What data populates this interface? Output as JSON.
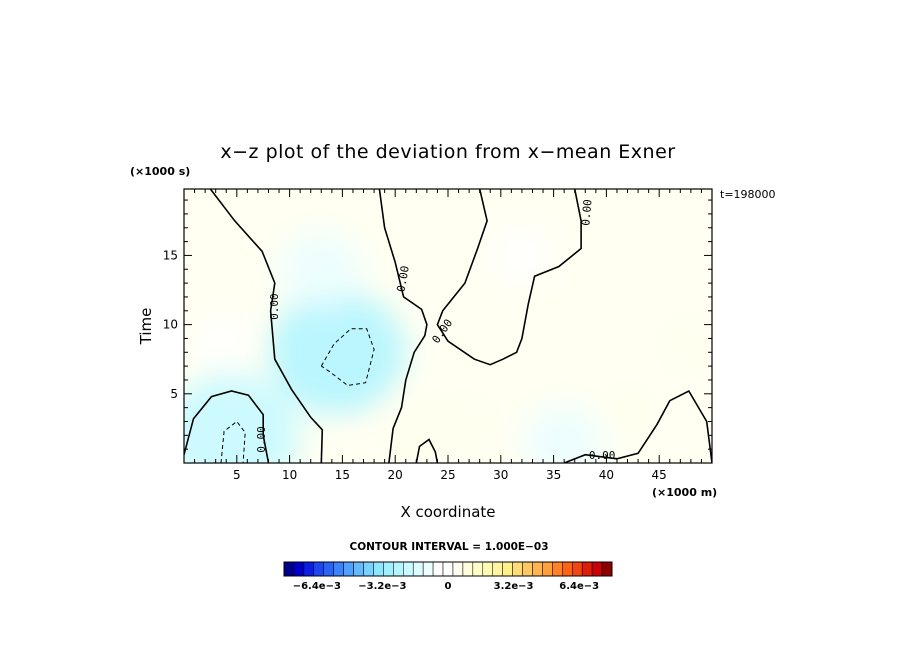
{
  "chart_data": {
    "type": "heatmap",
    "title": "x−z plot of the deviation from x−mean Exner",
    "xlabel": "X coordinate",
    "ylabel": "Time",
    "x_scale_label": "(×1000 m)",
    "y_scale_label": "(×1000 s)",
    "time_label": "t=198000",
    "xlim": [
      0,
      50
    ],
    "ylim": [
      0,
      19.8
    ],
    "x_ticks": [
      5,
      10,
      15,
      20,
      25,
      30,
      35,
      40,
      45
    ],
    "y_ticks": [
      5,
      10,
      15
    ],
    "contour_interval_text": "CONTOUR INTERVAL = 1.000E−03",
    "contour_labels": [
      "0.00",
      "0.00",
      "0.00",
      "0.00",
      "0.00",
      "0.00"
    ],
    "colorbar": {
      "range": [
        -0.008,
        0.008
      ],
      "tick_labels": [
        "−6.4e−3",
        "−3.2e−3",
        "0",
        "3.2e−3",
        "6.4e−3"
      ],
      "tick_values": [
        -0.0064,
        -0.0032,
        0,
        0.0032,
        0.0064
      ],
      "colors": [
        "#00008c",
        "#0000c8",
        "#0a1ee6",
        "#1e46f0",
        "#2864f5",
        "#3c82fa",
        "#50a0ff",
        "#64b9ff",
        "#78d2ff",
        "#8ce6ff",
        "#a0f0ff",
        "#b4f5ff",
        "#c8faff",
        "#dcfcff",
        "#ecfeff",
        "#ffffff",
        "#ffffff",
        "#fffff0",
        "#ffffdc",
        "#ffffc8",
        "#fffab4",
        "#fff5a0",
        "#fff08c",
        "#ffdc78",
        "#ffc864",
        "#ffb450",
        "#ffa03c",
        "#ff8228",
        "#fa6414",
        "#f04614",
        "#dc1e0a",
        "#c8000a",
        "#8c0000"
      ]
    },
    "anomalies": [
      {
        "x": 3.5,
        "y": 8.8,
        "value": 0.0002
      },
      {
        "x": 14.5,
        "y": 8.0,
        "value": -0.0022
      },
      {
        "x": 13.0,
        "y": 14.0,
        "value": -0.0008
      },
      {
        "x": 4.5,
        "y": 2.0,
        "value": -0.002
      },
      {
        "x": 27.0,
        "y": 2.5,
        "value": 0.0004
      },
      {
        "x": 36.0,
        "y": 1.5,
        "value": -0.0008
      },
      {
        "x": 32.0,
        "y": 15.0,
        "value": -0.0003
      },
      {
        "x": 42.0,
        "y": 3.5,
        "value": 0.0003
      },
      {
        "x": 48.0,
        "y": 8.5,
        "value": 0.0003
      },
      {
        "x": 22.0,
        "y": 2.5,
        "value": 0.0006
      }
    ],
    "contours": {
      "zero": [
        [
          [
            0.0,
            0.6
          ],
          [
            0.9,
            3.2
          ],
          [
            2.6,
            4.8
          ],
          [
            4.5,
            5.2
          ],
          [
            6.1,
            4.9
          ],
          [
            7.5,
            3.5
          ],
          [
            7.5,
            2.0
          ],
          [
            8.0,
            0.0
          ]
        ],
        [
          [
            2.5,
            19.8
          ],
          [
            4.8,
            17.5
          ],
          [
            7.4,
            15.3
          ],
          [
            8.6,
            13.0
          ],
          [
            8.2,
            11.0
          ],
          [
            8.6,
            7.5
          ],
          [
            10.2,
            5.3
          ],
          [
            12.0,
            3.3
          ],
          [
            13.1,
            2.4
          ],
          [
            13.0,
            0.0
          ]
        ],
        [
          [
            18.5,
            19.8
          ],
          [
            19.0,
            17.0
          ],
          [
            20.0,
            14.5
          ],
          [
            20.8,
            12.0
          ],
          [
            22.5,
            11.1
          ],
          [
            23.0,
            10.0
          ],
          [
            22.8,
            9.2
          ],
          [
            21.8,
            8.0
          ],
          [
            21.0,
            6.0
          ],
          [
            20.6,
            4.0
          ],
          [
            19.8,
            2.5
          ],
          [
            19.4,
            0.0
          ]
        ],
        [
          [
            28.0,
            19.8
          ],
          [
            28.7,
            17.5
          ],
          [
            27.8,
            15.5
          ],
          [
            26.6,
            13.0
          ],
          [
            24.5,
            11.0
          ],
          [
            24.0,
            10.0
          ],
          [
            25.0,
            8.8
          ],
          [
            27.5,
            7.5
          ],
          [
            29.0,
            7.1
          ],
          [
            30.2,
            7.5
          ],
          [
            31.5,
            8.0
          ],
          [
            32.0,
            9.0
          ],
          [
            32.6,
            11.5
          ],
          [
            33.2,
            13.5
          ],
          [
            35.5,
            14.2
          ],
          [
            37.6,
            15.5
          ],
          [
            37.6,
            17.5
          ],
          [
            37.0,
            19.8
          ]
        ],
        [
          [
            36.0,
            0.0
          ],
          [
            38.0,
            0.6
          ],
          [
            41.0,
            0.3
          ],
          [
            43.0,
            0.7
          ],
          [
            44.8,
            2.8
          ],
          [
            46.0,
            4.5
          ],
          [
            47.8,
            5.2
          ],
          [
            49.5,
            3.0
          ],
          [
            50.0,
            0.0
          ]
        ],
        [
          [
            22.0,
            0.0
          ],
          [
            22.3,
            1.2
          ],
          [
            23.2,
            1.7
          ],
          [
            23.8,
            0.8
          ],
          [
            24.0,
            0.0
          ]
        ]
      ],
      "negative": [
        [
          [
            13.0,
            7.0
          ],
          [
            14.2,
            8.6
          ],
          [
            15.8,
            9.7
          ],
          [
            17.3,
            9.7
          ],
          [
            18.0,
            8.2
          ],
          [
            17.2,
            5.8
          ],
          [
            15.5,
            5.6
          ],
          [
            13.8,
            6.6
          ],
          [
            13.0,
            7.0
          ]
        ],
        [
          [
            3.5,
            0.0
          ],
          [
            3.8,
            2.3
          ],
          [
            5.0,
            3.0
          ],
          [
            5.8,
            2.2
          ],
          [
            5.6,
            0.0
          ]
        ]
      ]
    }
  }
}
